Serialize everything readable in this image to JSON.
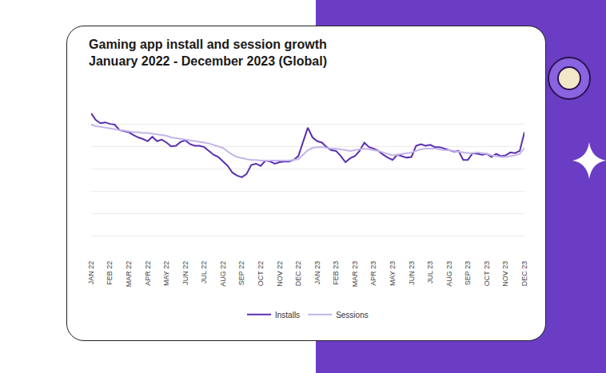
{
  "chart_data": {
    "type": "line",
    "title": "Gaming app install and session growth",
    "subtitle": "January 2022 - December 2023 (Global)",
    "categories": [
      "JAN 22",
      null,
      null,
      null,
      "FEB 22",
      null,
      null,
      null,
      "MAR 22",
      null,
      null,
      null,
      "APR 22",
      null,
      null,
      null,
      "MAY 22",
      null,
      null,
      null,
      "JUN 22",
      null,
      null,
      null,
      "JUL 22",
      null,
      null,
      null,
      "AUG 22",
      null,
      null,
      null,
      "SEP 22",
      null,
      null,
      null,
      "OCT 22",
      null,
      null,
      null,
      "NOV 22",
      null,
      null,
      null,
      "DEC 22",
      null,
      null,
      null,
      "JAN 23",
      null,
      null,
      null,
      "FEB 23",
      null,
      null,
      null,
      "MAR 23",
      null,
      null,
      null,
      "APR 23",
      null,
      null,
      null,
      "MAY 23",
      null,
      null,
      null,
      "JUN 23",
      null,
      null,
      null,
      "JUL 23",
      null,
      null,
      null,
      "AUG 23",
      null,
      null,
      null,
      "SEP 23",
      null,
      null,
      null,
      "OCT 23",
      null,
      null,
      null,
      "NOV 23",
      null,
      null,
      null,
      "DEC 23"
    ],
    "series": [
      {
        "name": "Installs",
        "color": "#5b2fb0",
        "line_style": "solid",
        "values": [
          6.47,
          6.17,
          6.03,
          6.07,
          6.0,
          5.97,
          5.73,
          5.67,
          5.63,
          5.5,
          5.4,
          5.33,
          5.23,
          5.43,
          5.23,
          5.3,
          5.17,
          5.0,
          5.03,
          5.2,
          5.27,
          5.1,
          5.03,
          5.03,
          4.97,
          4.8,
          4.63,
          4.53,
          4.33,
          4.13,
          3.83,
          3.7,
          3.63,
          3.77,
          4.17,
          4.23,
          4.13,
          4.37,
          4.33,
          4.23,
          4.3,
          4.33,
          4.33,
          4.4,
          4.57,
          5.23,
          5.83,
          5.4,
          5.23,
          5.17,
          4.97,
          4.83,
          4.8,
          4.57,
          4.3,
          4.47,
          4.57,
          4.8,
          5.17,
          4.97,
          4.9,
          4.8,
          4.63,
          4.5,
          4.4,
          4.63,
          4.57,
          4.5,
          4.53,
          5.03,
          5.1,
          5.03,
          5.07,
          4.97,
          4.97,
          4.9,
          4.83,
          4.77,
          4.8,
          4.4,
          4.4,
          4.7,
          4.67,
          4.63,
          4.67,
          4.53,
          4.67,
          4.57,
          4.6,
          4.73,
          4.7,
          4.8,
          5.63
        ]
      },
      {
        "name": "Sessions",
        "color": "#c4b5ea",
        "line_style": "solid",
        "values": [
          5.97,
          5.9,
          5.87,
          5.83,
          5.8,
          5.77,
          5.73,
          5.7,
          5.67,
          5.63,
          5.63,
          5.6,
          5.6,
          5.57,
          5.53,
          5.5,
          5.47,
          5.4,
          5.37,
          5.33,
          5.3,
          5.27,
          5.23,
          5.2,
          5.17,
          5.13,
          5.07,
          5.0,
          4.93,
          4.77,
          4.63,
          4.53,
          4.47,
          4.43,
          4.4,
          4.4,
          4.37,
          4.37,
          4.37,
          4.37,
          4.37,
          4.37,
          4.37,
          4.4,
          4.43,
          4.63,
          4.83,
          4.93,
          4.97,
          4.97,
          4.93,
          4.9,
          4.9,
          4.87,
          4.83,
          4.8,
          4.83,
          4.87,
          4.9,
          4.87,
          4.83,
          4.8,
          4.73,
          4.67,
          4.6,
          4.63,
          4.67,
          4.7,
          4.73,
          4.8,
          4.87,
          4.9,
          4.9,
          4.9,
          4.87,
          4.83,
          4.83,
          4.8,
          4.77,
          4.73,
          4.7,
          4.7,
          4.73,
          4.7,
          4.67,
          4.6,
          4.57,
          4.53,
          4.53,
          4.57,
          4.6,
          4.67,
          4.93
        ]
      }
    ],
    "ylim": [
      0,
      7
    ],
    "yticks": [
      0,
      1,
      2,
      3,
      4,
      5,
      6,
      7
    ],
    "grid": true,
    "tick_labels": "x",
    "legend": "bottom"
  }
}
